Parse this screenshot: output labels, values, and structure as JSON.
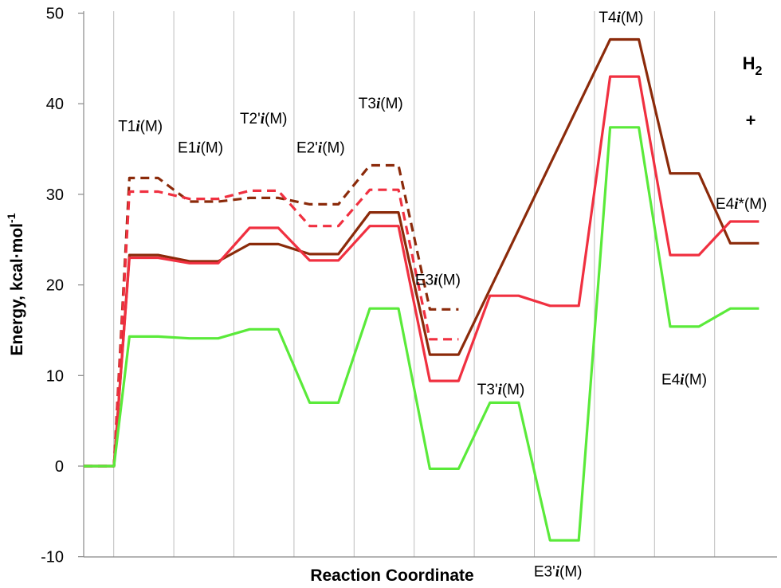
{
  "chart_data": {
    "type": "line",
    "title": "",
    "xlabel": "Reaction Coordinate",
    "ylabel": "Energy, kcal·mol",
    "ylabel_superscript": "-1",
    "ylim": [
      -10,
      50
    ],
    "yticks": [
      "-10",
      "0",
      "10",
      "20",
      "30",
      "40",
      "50"
    ],
    "x_positions": 11,
    "grid": {
      "vertical": true,
      "horizontal": false
    },
    "legend": "none",
    "series": [
      {
        "color": "#8B2A0A",
        "dashed": true,
        "values": [
          0,
          31.8,
          29.2,
          29.6,
          28.9,
          33.2,
          17.3
        ]
      },
      {
        "color": "#F03040",
        "dashed": true,
        "values": [
          0,
          30.3,
          29.5,
          30.4,
          26.5,
          30.5,
          14.0
        ]
      },
      {
        "color": "#8B2A0A",
        "dashed": false,
        "values": [
          0,
          23.3,
          22.6,
          24.5,
          23.4,
          28.0,
          12.3,
          null,
          null,
          47.1,
          32.3,
          24.6
        ]
      },
      {
        "color": "#F03040",
        "dashed": false,
        "values": [
          0,
          23.0,
          22.4,
          26.3,
          22.7,
          26.5,
          9.4,
          18.8,
          17.7,
          43.0,
          23.3,
          27.0
        ]
      },
      {
        "color": "#5AEA3A",
        "dashed": false,
        "values": [
          0,
          14.3,
          14.1,
          15.1,
          7.0,
          17.4,
          -0.3,
          7.0,
          -8.2,
          37.4,
          15.4,
          17.4
        ]
      }
    ],
    "annotations": [
      {
        "label": "T1",
        "italic": "i",
        "suffix": "(M)",
        "x": 1.05,
        "y": 37.0
      },
      {
        "label": "E1",
        "italic": "i",
        "suffix": "(M)",
        "x": 2.05,
        "y": 34.6
      },
      {
        "label": "T2'",
        "italic": "i",
        "suffix": "(M)",
        "x": 3.1,
        "y": 37.8
      },
      {
        "label": "E2'",
        "italic": "i",
        "suffix": "(M)",
        "x": 4.05,
        "y": 34.6
      },
      {
        "label": "T3",
        "italic": "i",
        "suffix": "(M)",
        "x": 5.05,
        "y": 39.5
      },
      {
        "label": "E3",
        "italic": "i",
        "suffix": "(M)",
        "x": 6.0,
        "y": 20.0
      },
      {
        "label": "T3'",
        "italic": "i",
        "suffix": "(M)",
        "x": 7.05,
        "y": 7.9
      },
      {
        "label": "E3'",
        "italic": "i",
        "suffix": "(M)",
        "x": 8.0,
        "y": -12.2
      },
      {
        "label": "T4",
        "italic": "i",
        "suffix": "(M)",
        "x": 9.05,
        "y": 49.0
      },
      {
        "label": "E4",
        "italic": "i",
        "suffix": "(M)",
        "x": 10.1,
        "y": 9.0
      },
      {
        "label": "E4",
        "italic": "i",
        "suffix": "*(M)",
        "x": 11.05,
        "y": 28.4
      }
    ],
    "product_label": {
      "base": "H",
      "subscript": "2",
      "plus": "+"
    }
  }
}
